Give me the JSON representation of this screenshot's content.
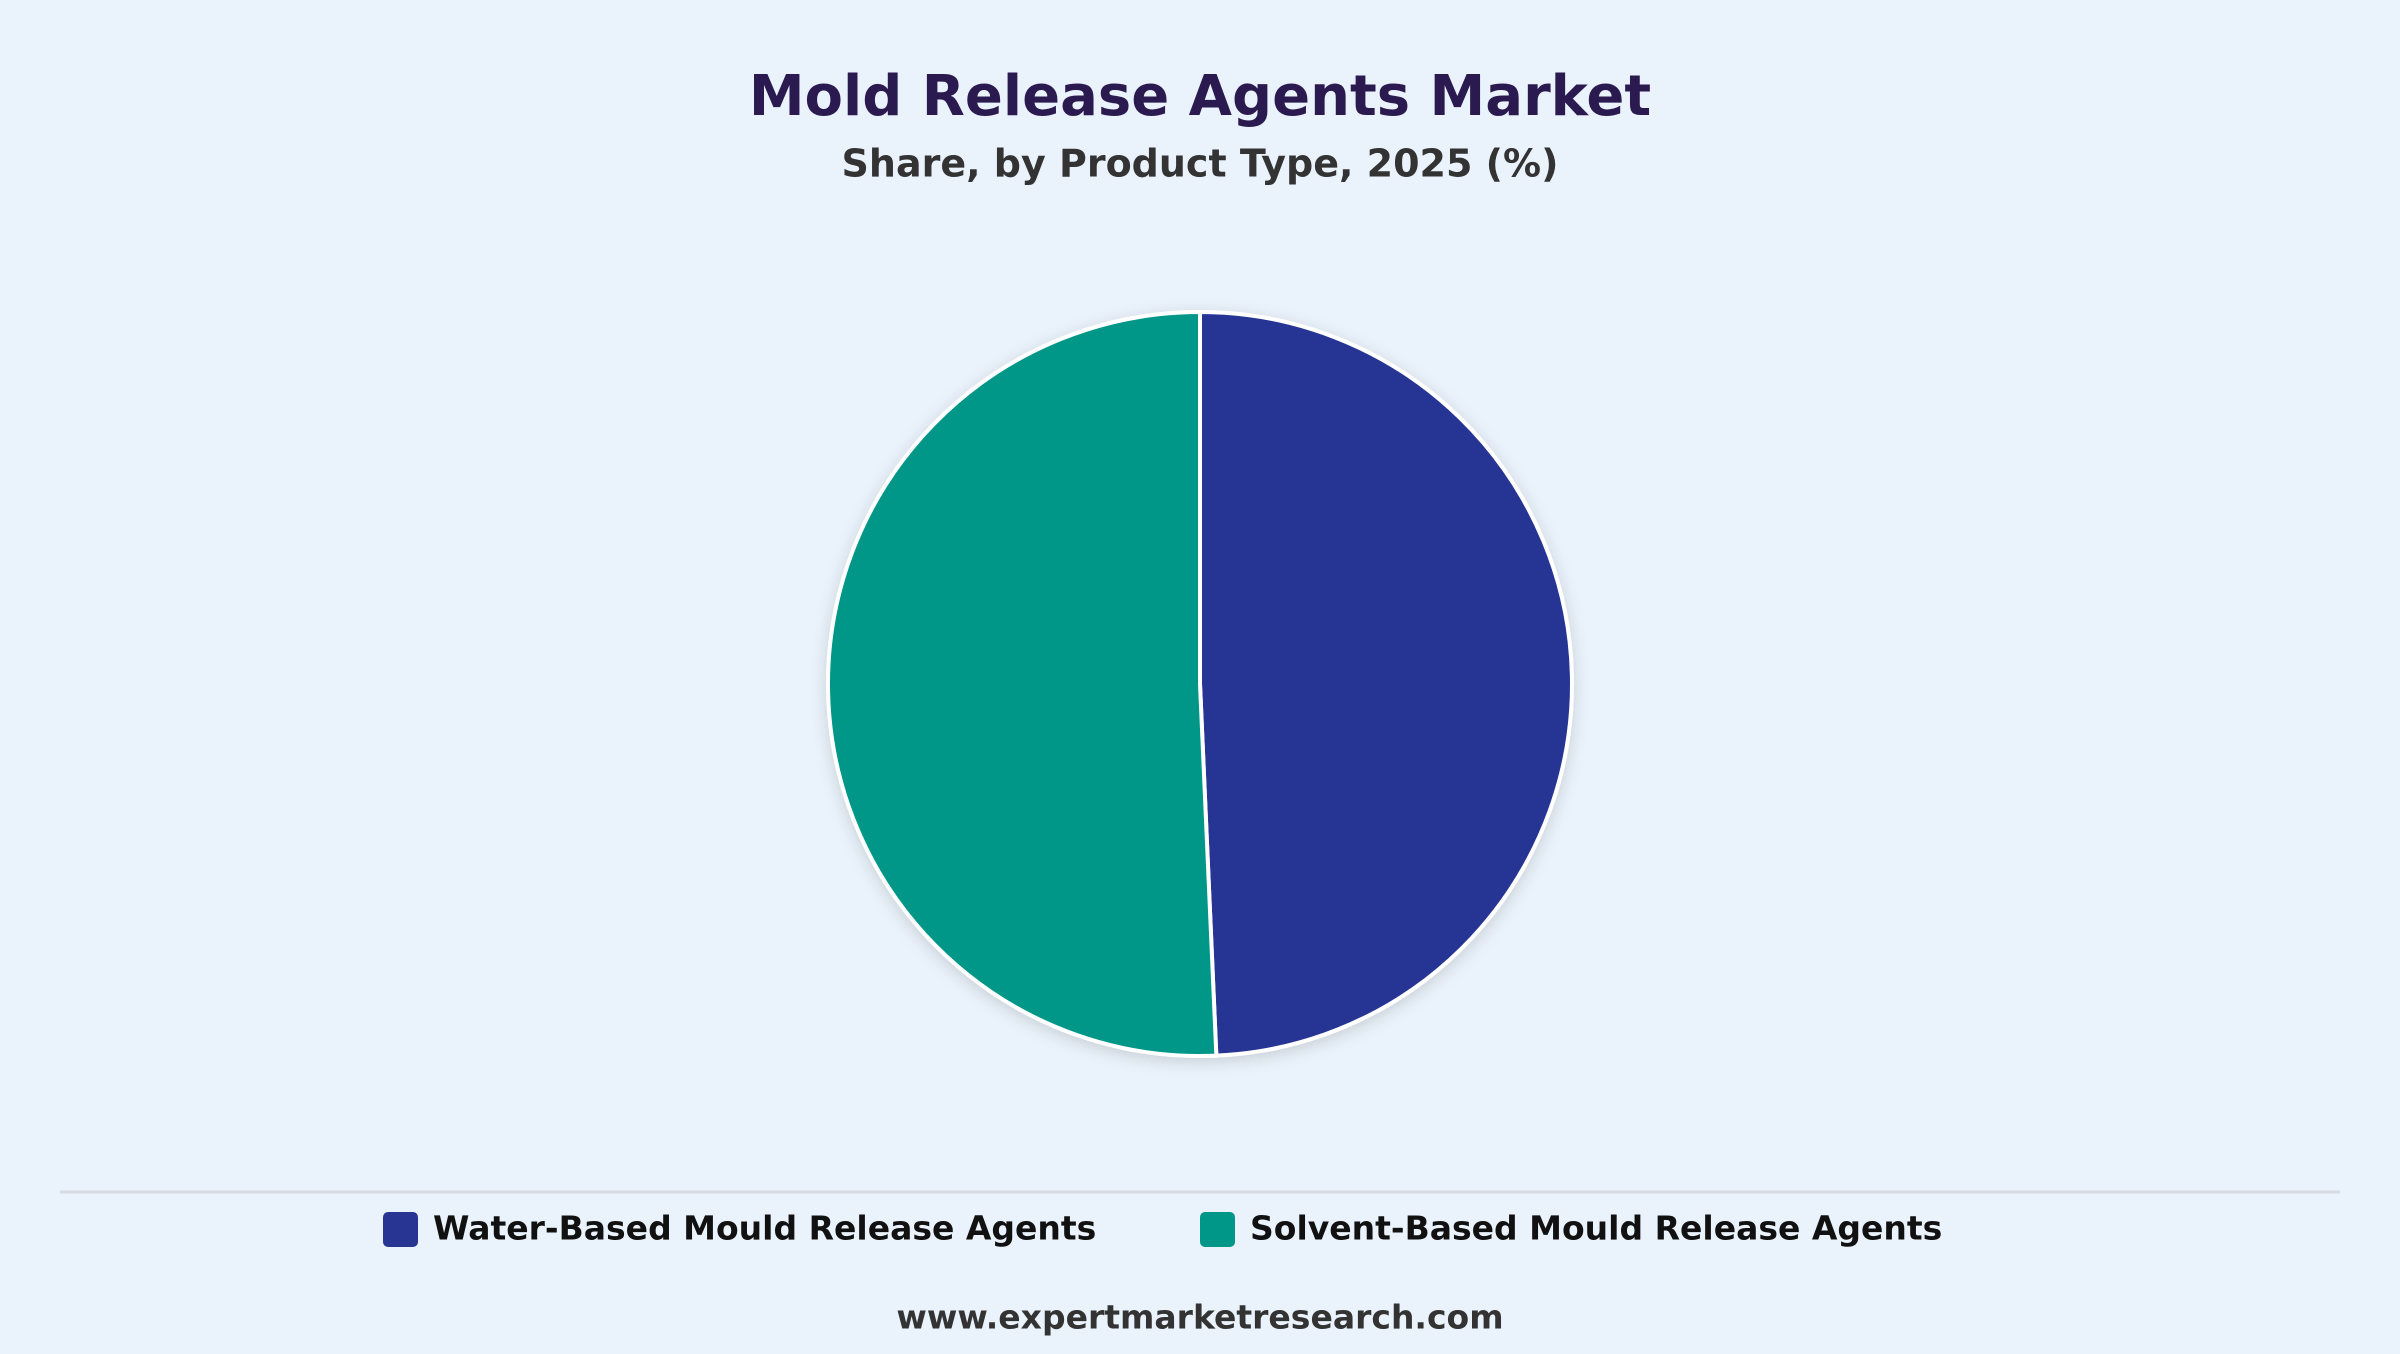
{
  "chart_data": {
    "type": "pie",
    "title": "Mold Release Agents Market",
    "subtitle": "Share, by Product Type, 2025 (%)",
    "categories": [
      "Water-Based Mould Release Agents",
      "Solvent-Based Mould Release Agents"
    ],
    "values": [
      49.3,
      50.7
    ],
    "colors": [
      "#283593",
      "#009688"
    ],
    "source": "www.expertmarketresearch.com"
  }
}
